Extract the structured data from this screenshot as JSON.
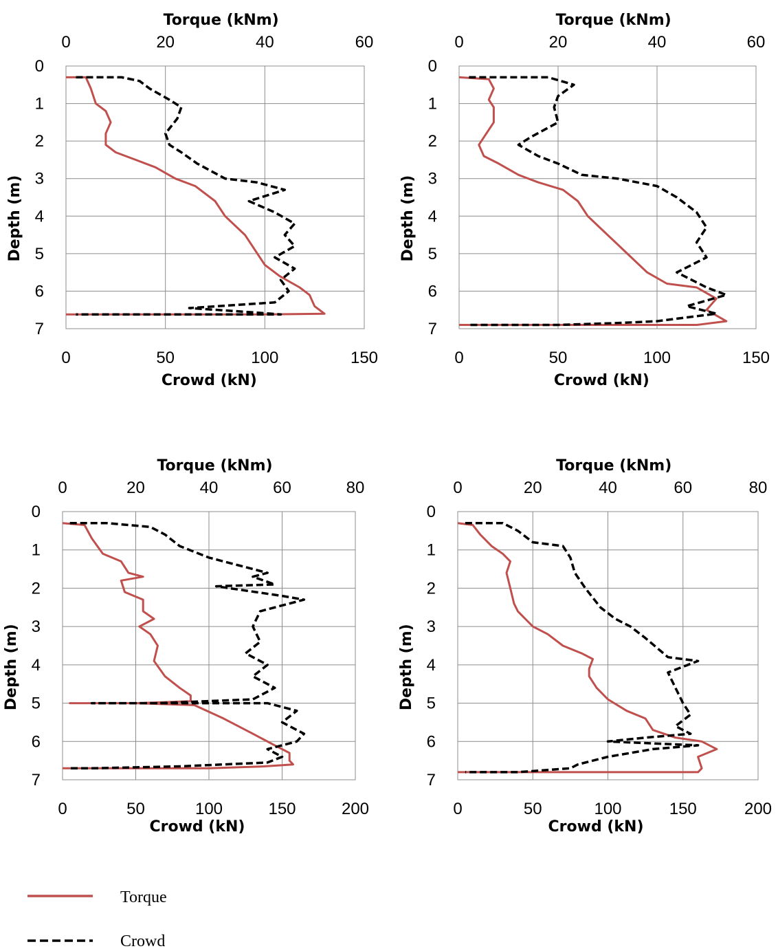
{
  "chart_data": [
    {
      "type": "line",
      "top_axis_label": "Torque (kNm)",
      "bottom_axis_label": "Crowd (kN)",
      "ylabel": "Depth (m)",
      "ylim": [
        0,
        7
      ],
      "y_inverted": true,
      "top_xlim": [
        0,
        60
      ],
      "top_ticks": [
        0,
        20,
        40,
        60
      ],
      "bottom_xlim": [
        0,
        150
      ],
      "bottom_ticks": [
        0,
        50,
        100,
        150
      ],
      "y_ticks": [
        0,
        1,
        2,
        3,
        4,
        5,
        6,
        7
      ],
      "grid": true,
      "series": [
        {
          "name": "Torque",
          "axis": "top",
          "color": "#c0504d",
          "style": "solid",
          "points": [
            [
              0,
              0.3
            ],
            [
              4,
              0.3
            ],
            [
              5,
              0.6
            ],
            [
              6,
              1.0
            ],
            [
              8,
              1.2
            ],
            [
              9,
              1.5
            ],
            [
              8,
              1.8
            ],
            [
              8,
              2.1
            ],
            [
              10,
              2.3
            ],
            [
              14,
              2.5
            ],
            [
              18,
              2.7
            ],
            [
              22,
              3.0
            ],
            [
              26,
              3.2
            ],
            [
              30,
              3.6
            ],
            [
              32,
              4.0
            ],
            [
              36,
              4.5
            ],
            [
              38,
              4.9
            ],
            [
              40,
              5.3
            ],
            [
              43,
              5.6
            ],
            [
              47,
              5.9
            ],
            [
              49,
              6.1
            ],
            [
              50,
              6.4
            ],
            [
              52,
              6.6
            ],
            [
              40,
              6.62
            ],
            [
              20,
              6.62
            ],
            [
              0,
              6.62
            ]
          ]
        },
        {
          "name": "Crowd",
          "axis": "bottom",
          "color": "#000000",
          "style": "dashed",
          "points": [
            [
              5,
              0.3
            ],
            [
              28,
              0.3
            ],
            [
              37,
              0.4
            ],
            [
              42,
              0.6
            ],
            [
              52,
              0.9
            ],
            [
              58,
              1.1
            ],
            [
              56,
              1.4
            ],
            [
              50,
              1.8
            ],
            [
              52,
              2.1
            ],
            [
              58,
              2.3
            ],
            [
              66,
              2.6
            ],
            [
              80,
              3.0
            ],
            [
              96,
              3.1
            ],
            [
              110,
              3.3
            ],
            [
              92,
              3.6
            ],
            [
              105,
              3.9
            ],
            [
              115,
              4.2
            ],
            [
              110,
              4.5
            ],
            [
              115,
              4.8
            ],
            [
              105,
              5.1
            ],
            [
              115,
              5.4
            ],
            [
              108,
              5.7
            ],
            [
              112,
              6.0
            ],
            [
              105,
              6.3
            ],
            [
              62,
              6.45
            ],
            [
              90,
              6.55
            ],
            [
              108,
              6.62
            ],
            [
              50,
              6.62
            ],
            [
              10,
              6.62
            ],
            [
              5,
              6.62
            ]
          ]
        }
      ]
    },
    {
      "type": "line",
      "top_axis_label": "Torque (kNm)",
      "bottom_axis_label": "Crowd (kN)",
      "ylabel": "Depth (m)",
      "ylim": [
        0,
        7
      ],
      "y_inverted": true,
      "top_xlim": [
        0,
        60
      ],
      "top_ticks": [
        0,
        20,
        40,
        60
      ],
      "bottom_xlim": [
        0,
        150
      ],
      "bottom_ticks": [
        0,
        50,
        100,
        150
      ],
      "y_ticks": [
        0,
        1,
        2,
        3,
        4,
        5,
        6,
        7
      ],
      "grid": true,
      "series": [
        {
          "name": "Torque",
          "axis": "top",
          "color": "#c0504d",
          "style": "solid",
          "points": [
            [
              0,
              0.3
            ],
            [
              6,
              0.35
            ],
            [
              7,
              0.6
            ],
            [
              6,
              0.9
            ],
            [
              7,
              1.1
            ],
            [
              7,
              1.5
            ],
            [
              5,
              1.9
            ],
            [
              4,
              2.1
            ],
            [
              5,
              2.4
            ],
            [
              8,
              2.6
            ],
            [
              12,
              2.9
            ],
            [
              16,
              3.1
            ],
            [
              21,
              3.3
            ],
            [
              24,
              3.6
            ],
            [
              26,
              4.0
            ],
            [
              30,
              4.5
            ],
            [
              34,
              5.0
            ],
            [
              38,
              5.5
            ],
            [
              42,
              5.8
            ],
            [
              48,
              5.9
            ],
            [
              52,
              6.2
            ],
            [
              50,
              6.5
            ],
            [
              54,
              6.8
            ],
            [
              48,
              6.9
            ],
            [
              30,
              6.9
            ],
            [
              0,
              6.9
            ]
          ]
        },
        {
          "name": "Crowd",
          "axis": "bottom",
          "color": "#000000",
          "style": "dashed",
          "points": [
            [
              5,
              0.3
            ],
            [
              45,
              0.3
            ],
            [
              58,
              0.5
            ],
            [
              50,
              0.8
            ],
            [
              48,
              1.1
            ],
            [
              50,
              1.5
            ],
            [
              36,
              1.9
            ],
            [
              30,
              2.1
            ],
            [
              40,
              2.4
            ],
            [
              50,
              2.6
            ],
            [
              62,
              2.9
            ],
            [
              80,
              3.0
            ],
            [
              100,
              3.2
            ],
            [
              110,
              3.5
            ],
            [
              120,
              3.9
            ],
            [
              125,
              4.3
            ],
            [
              120,
              4.7
            ],
            [
              125,
              5.1
            ],
            [
              110,
              5.5
            ],
            [
              125,
              5.9
            ],
            [
              135,
              6.1
            ],
            [
              115,
              6.4
            ],
            [
              130,
              6.6
            ],
            [
              100,
              6.8
            ],
            [
              80,
              6.85
            ],
            [
              50,
              6.9
            ],
            [
              10,
              6.9
            ],
            [
              5,
              6.9
            ]
          ]
        }
      ]
    },
    {
      "type": "line",
      "top_axis_label": "Torque (kNm)",
      "bottom_axis_label": "Crowd (kN)",
      "ylabel": "Depth (m)",
      "ylim": [
        0,
        7
      ],
      "y_inverted": true,
      "top_xlim": [
        0,
        80
      ],
      "top_ticks": [
        0,
        20,
        40,
        60,
        80
      ],
      "bottom_xlim": [
        0,
        200
      ],
      "bottom_ticks": [
        0,
        50,
        100,
        150,
        200
      ],
      "y_ticks": [
        0,
        1,
        2,
        3,
        4,
        5,
        6,
        7
      ],
      "grid": true,
      "series": [
        {
          "name": "Torque",
          "axis": "top",
          "color": "#c0504d",
          "style": "solid",
          "points": [
            [
              0,
              0.3
            ],
            [
              6,
              0.35
            ],
            [
              8,
              0.7
            ],
            [
              11,
              1.1
            ],
            [
              16,
              1.3
            ],
            [
              18,
              1.6
            ],
            [
              22,
              1.7
            ],
            [
              16,
              1.8
            ],
            [
              17,
              2.1
            ],
            [
              22,
              2.3
            ],
            [
              22,
              2.6
            ],
            [
              25,
              2.8
            ],
            [
              21,
              3.0
            ],
            [
              24,
              3.2
            ],
            [
              26,
              3.5
            ],
            [
              25,
              3.9
            ],
            [
              28,
              4.3
            ],
            [
              32,
              4.6
            ],
            [
              35,
              4.8
            ],
            [
              35,
              4.95
            ],
            [
              20,
              5.0
            ],
            [
              5,
              5.0
            ],
            [
              2,
              5.0
            ],
            [
              20,
              5.0
            ],
            [
              36,
              5.05
            ],
            [
              44,
              5.4
            ],
            [
              52,
              5.8
            ],
            [
              58,
              6.1
            ],
            [
              62,
              6.3
            ],
            [
              62,
              6.5
            ],
            [
              63,
              6.6
            ],
            [
              55,
              6.65
            ],
            [
              40,
              6.7
            ],
            [
              0,
              6.7
            ]
          ]
        },
        {
          "name": "Crowd",
          "axis": "bottom",
          "color": "#000000",
          "style": "dashed",
          "points": [
            [
              5,
              0.3
            ],
            [
              30,
              0.3
            ],
            [
              60,
              0.4
            ],
            [
              70,
              0.6
            ],
            [
              80,
              0.9
            ],
            [
              100,
              1.2
            ],
            [
              120,
              1.4
            ],
            [
              140,
              1.6
            ],
            [
              130,
              1.7
            ],
            [
              145,
              1.9
            ],
            [
              105,
              1.95
            ],
            [
              150,
              2.2
            ],
            [
              165,
              2.3
            ],
            [
              135,
              2.6
            ],
            [
              130,
              3.0
            ],
            [
              135,
              3.4
            ],
            [
              125,
              3.7
            ],
            [
              140,
              4.0
            ],
            [
              130,
              4.3
            ],
            [
              145,
              4.6
            ],
            [
              130,
              4.9
            ],
            [
              65,
              5.0
            ],
            [
              20,
              5.0
            ],
            [
              140,
              5.0
            ],
            [
              160,
              5.2
            ],
            [
              150,
              5.5
            ],
            [
              165,
              5.8
            ],
            [
              160,
              6.0
            ],
            [
              140,
              6.2
            ],
            [
              150,
              6.4
            ],
            [
              140,
              6.55
            ],
            [
              80,
              6.65
            ],
            [
              20,
              6.7
            ],
            [
              5,
              6.7
            ]
          ]
        }
      ]
    },
    {
      "type": "line",
      "top_axis_label": "Torque (kNm)",
      "bottom_axis_label": "Crowd (kN)",
      "ylabel": "Depth (m)",
      "ylim": [
        0,
        7
      ],
      "y_inverted": true,
      "top_xlim": [
        0,
        80
      ],
      "top_ticks": [
        0,
        20,
        40,
        60,
        80
      ],
      "bottom_xlim": [
        0,
        200
      ],
      "bottom_ticks": [
        0,
        50,
        100,
        150,
        200
      ],
      "y_ticks": [
        0,
        1,
        2,
        3,
        4,
        5,
        6,
        7
      ],
      "grid": true,
      "series": [
        {
          "name": "Torque",
          "axis": "top",
          "color": "#c0504d",
          "style": "solid",
          "points": [
            [
              0,
              0.3
            ],
            [
              4,
              0.35
            ],
            [
              6,
              0.6
            ],
            [
              9,
              0.9
            ],
            [
              12,
              1.1
            ],
            [
              14,
              1.3
            ],
            [
              13,
              1.6
            ],
            [
              14,
              2.0
            ],
            [
              15,
              2.4
            ],
            [
              16,
              2.6
            ],
            [
              18,
              2.8
            ],
            [
              20,
              3.0
            ],
            [
              24,
              3.2
            ],
            [
              28,
              3.5
            ],
            [
              33,
              3.7
            ],
            [
              36,
              3.85
            ],
            [
              35,
              4.1
            ],
            [
              35,
              4.3
            ],
            [
              37,
              4.6
            ],
            [
              40,
              4.9
            ],
            [
              45,
              5.2
            ],
            [
              50,
              5.4
            ],
            [
              52,
              5.7
            ],
            [
              58,
              5.9
            ],
            [
              65,
              6.0
            ],
            [
              69,
              6.2
            ],
            [
              64,
              6.4
            ],
            [
              65,
              6.7
            ],
            [
              64,
              6.8
            ],
            [
              45,
              6.8
            ],
            [
              20,
              6.8
            ],
            [
              0,
              6.8
            ]
          ]
        },
        {
          "name": "Crowd",
          "axis": "bottom",
          "color": "#000000",
          "style": "dashed",
          "points": [
            [
              5,
              0.3
            ],
            [
              30,
              0.3
            ],
            [
              40,
              0.5
            ],
            [
              50,
              0.8
            ],
            [
              70,
              0.9
            ],
            [
              75,
              1.2
            ],
            [
              78,
              1.6
            ],
            [
              85,
              2.0
            ],
            [
              95,
              2.5
            ],
            [
              105,
              2.8
            ],
            [
              115,
              3.0
            ],
            [
              125,
              3.3
            ],
            [
              140,
              3.8
            ],
            [
              160,
              3.9
            ],
            [
              140,
              4.2
            ],
            [
              145,
              4.6
            ],
            [
              150,
              5.0
            ],
            [
              155,
              5.3
            ],
            [
              145,
              5.6
            ],
            [
              155,
              5.8
            ],
            [
              125,
              5.9
            ],
            [
              100,
              6.0
            ],
            [
              160,
              6.1
            ],
            [
              130,
              6.2
            ],
            [
              100,
              6.4
            ],
            [
              80,
              6.6
            ],
            [
              75,
              6.7
            ],
            [
              40,
              6.8
            ],
            [
              10,
              6.8
            ],
            [
              5,
              6.8
            ]
          ]
        }
      ]
    }
  ],
  "legend": [
    {
      "label": "Torque",
      "color": "#c0504d",
      "style": "solid"
    },
    {
      "label": "Crowd",
      "color": "#000000",
      "style": "dashed"
    }
  ]
}
